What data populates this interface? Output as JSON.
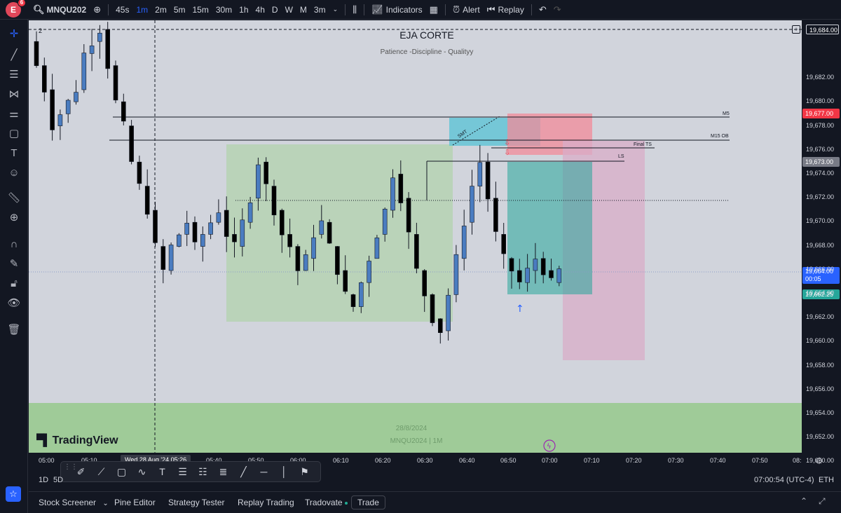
{
  "header": {
    "avatar_letter": "E",
    "notification_count": "6",
    "symbol": "MNQU202",
    "intervals": [
      "45s",
      "1m",
      "2m",
      "5m",
      "15m",
      "30m",
      "1h",
      "4h",
      "D",
      "W",
      "M",
      "3m"
    ],
    "active_interval": "1m",
    "indicators_label": "Indicators",
    "alert_label": "Alert",
    "replay_label": "Replay"
  },
  "chart": {
    "title": "EJA CORTE",
    "subtitle": "Patience -Discipline - Qualityy",
    "watermark_date": "28/8/2024",
    "watermark_symbol": "MNQU2024 | 1M",
    "brand": "TradingView",
    "legend_count": "2",
    "colors": {
      "background": "#d1d4dc",
      "bull_candle": "#4a7cc0",
      "bear_candle": "#000000",
      "zone_green": "#b7d3b5",
      "zone_teal": "#55c3d5",
      "zone_red": "#f28b9a",
      "zone_pink": "#d8adc8",
      "zone_bottom": "#9fcb98",
      "target_green": "#26a69a"
    },
    "line_labels": {
      "m5": "M5",
      "m15_ob": "M15 OB",
      "final_ts": "Final TS",
      "ls": "LS",
      "smt": "SMT"
    }
  },
  "price_scale": {
    "ticks": [
      "19,684.00",
      "19,682.00",
      "19,680.00",
      "19,678.00",
      "19,676.00",
      "19,674.00",
      "19,672.00",
      "19,670.00",
      "19,668.00",
      "19,666.00",
      "19,664.00",
      "19,662.00",
      "19,660.00",
      "19,658.00",
      "19,656.00",
      "19,654.00",
      "19,652.00",
      "19,650.00"
    ],
    "badge_top": "19,684.00",
    "badge_red": "19,677.00",
    "badge_gray": "19,673.00",
    "badge_current": "19,664.00",
    "badge_countdown": "00:05",
    "badge_green": "19,662.25"
  },
  "time_axis": {
    "ticks": [
      "05:00",
      "05:10",
      "05:40",
      "05:50",
      "06:00",
      "06:10",
      "06:20",
      "06:30",
      "06:40",
      "06:50",
      "07:00",
      "07:10",
      "07:20",
      "07:30",
      "07:40",
      "07:50",
      "08:"
    ],
    "tooltip": "Wed 28 Aug '24   05:26"
  },
  "range_bar": {
    "items": [
      "1D",
      "5D"
    ],
    "clock": "07:00:54 (UTC-4)",
    "session": "ETH"
  },
  "bottom_tabs": {
    "stock_screener": "Stock Screener",
    "pine_editor": "Pine Editor",
    "strategy_tester": "Strategy Tester",
    "replay_trading": "Replay Trading",
    "tradovate": "Tradovate",
    "trade": "Trade"
  }
}
